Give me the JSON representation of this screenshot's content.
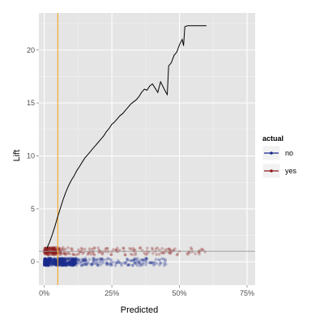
{
  "chart_data": {
    "type": "line",
    "xlabel": "Predicted",
    "ylabel": "Lift",
    "xlim": [
      -0.02,
      0.78
    ],
    "ylim": [
      -2.2,
      23.5
    ],
    "x_ticks": [
      0,
      0.25,
      0.5,
      0.75
    ],
    "x_tick_labels": [
      "0%",
      "25%",
      "50%",
      "75%"
    ],
    "y_ticks": [
      0,
      5,
      10,
      15,
      20
    ],
    "y_tick_labels": [
      "0",
      "5",
      "10",
      "15",
      "20"
    ],
    "grid": true,
    "legend": {
      "title": "actual",
      "placement": "right",
      "items": [
        {
          "label": "no",
          "color": "#1a2a8c"
        },
        {
          "label": "yes",
          "color": "#8b1a1a"
        }
      ]
    },
    "lift_curve": {
      "color": "#000000",
      "x": [
        0.01,
        0.02,
        0.03,
        0.04,
        0.05,
        0.06,
        0.07,
        0.08,
        0.09,
        0.1,
        0.11,
        0.12,
        0.13,
        0.14,
        0.15,
        0.16,
        0.17,
        0.18,
        0.19,
        0.2,
        0.21,
        0.22,
        0.23,
        0.24,
        0.25,
        0.26,
        0.27,
        0.28,
        0.29,
        0.3,
        0.31,
        0.32,
        0.33,
        0.34,
        0.35,
        0.36,
        0.37,
        0.38,
        0.39,
        0.4,
        0.41,
        0.42,
        0.43,
        0.44,
        0.45,
        0.455,
        0.46,
        0.47,
        0.48,
        0.49,
        0.5,
        0.51,
        0.515,
        0.52,
        0.53,
        0.56,
        0.6
      ],
      "y": [
        1.3,
        1.9,
        2.6,
        3.4,
        4.3,
        5.1,
        5.9,
        6.6,
        7.2,
        7.7,
        8.1,
        8.6,
        9.0,
        9.4,
        9.8,
        10.1,
        10.4,
        10.7,
        11.0,
        11.3,
        11.6,
        11.9,
        12.3,
        12.6,
        13.0,
        13.2,
        13.5,
        13.8,
        14.0,
        14.3,
        14.6,
        14.9,
        15.1,
        15.3,
        15.6,
        16.0,
        16.3,
        16.2,
        16.6,
        16.8,
        16.4,
        16.0,
        17.0,
        16.5,
        16.0,
        15.8,
        18.5,
        18.8,
        19.5,
        19.8,
        20.5,
        21.0,
        20.4,
        22.2,
        22.3,
        22.3,
        22.3
      ]
    },
    "reference_lines": {
      "horizontal": {
        "y": 1,
        "color": "#999999"
      },
      "vertical": {
        "x": 0.05,
        "color": "#f5a623"
      }
    },
    "points": {
      "no": {
        "y_center": 0,
        "y_jitter": 0.35,
        "color": "#1a2a8c",
        "dense_x_range": [
          0.0,
          0.12
        ],
        "sparse_x_range": [
          0.12,
          0.45
        ]
      },
      "yes": {
        "y_center": 1,
        "y_jitter": 0.35,
        "color": "#8b1a1a",
        "dense_x_range": [
          0.0,
          0.06
        ],
        "sparse_x_range": [
          0.06,
          0.6
        ]
      }
    }
  }
}
